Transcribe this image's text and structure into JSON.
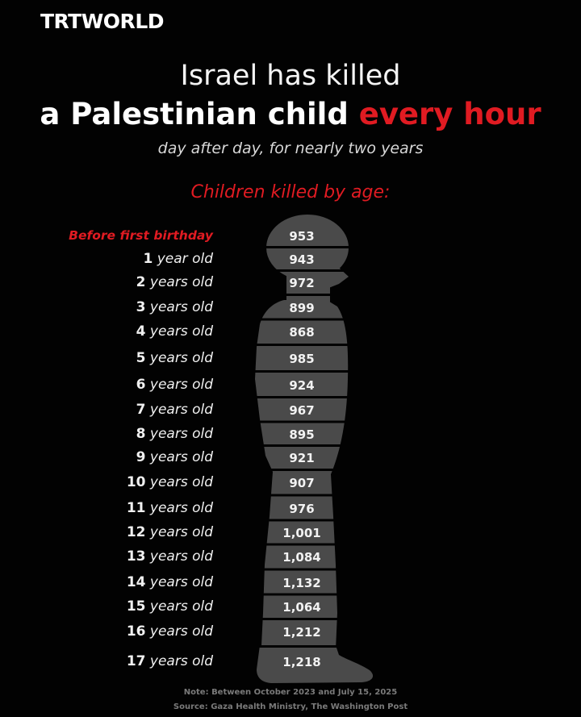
{
  "brand": "TRTWORLD",
  "title_line1": "Israel has killed",
  "title_line2_white": "a Palestinian child ",
  "title_line2_red": "every hour",
  "subtitle": "day after day, for nearly two years",
  "chart_title": "Children killed by age:",
  "note": "Note: Between October 2023 and July 15, 2025",
  "source": "Source: Gaza Health Ministry, The Washington Post",
  "colors": {
    "accent": "#e01b22",
    "silhouette": "#4a4a4a",
    "background": "#020202"
  },
  "chart_data": {
    "type": "table",
    "title": "Children killed by age:",
    "rows": [
      {
        "label": "Before first birthday",
        "value_label": "953",
        "value": 953
      },
      {
        "label_num": "1",
        "label_text": " year old",
        "value_label": "943",
        "value": 943
      },
      {
        "label_num": "2",
        "label_text": " years old",
        "value_label": "972",
        "value": 972
      },
      {
        "label_num": "3",
        "label_text": " years old",
        "value_label": "899",
        "value": 899
      },
      {
        "label_num": "4",
        "label_text": " years old",
        "value_label": "868",
        "value": 868
      },
      {
        "label_num": "5",
        "label_text": " years old",
        "value_label": "985",
        "value": 985
      },
      {
        "label_num": "6",
        "label_text": " years old",
        "value_label": "924",
        "value": 924
      },
      {
        "label_num": "7",
        "label_text": " years old",
        "value_label": "967",
        "value": 967
      },
      {
        "label_num": "8",
        "label_text": " years old",
        "value_label": "895",
        "value": 895
      },
      {
        "label_num": "9",
        "label_text": " years old",
        "value_label": "921",
        "value": 921
      },
      {
        "label_num": "10",
        "label_text": " years old",
        "value_label": "907",
        "value": 907
      },
      {
        "label_num": "11",
        "label_text": " years old",
        "value_label": "976",
        "value": 976
      },
      {
        "label_num": "12",
        "label_text": " years old",
        "value_label": "1,001",
        "value": 1001
      },
      {
        "label_num": "13",
        "label_text": " years old",
        "value_label": "1,084",
        "value": 1084
      },
      {
        "label_num": "14",
        "label_text": " years old",
        "value_label": "1,132",
        "value": 1132
      },
      {
        "label_num": "15",
        "label_text": " years old",
        "value_label": "1,064",
        "value": 1064
      },
      {
        "label_num": "16",
        "label_text": " years old",
        "value_label": "1,212",
        "value": 1212
      },
      {
        "label_num": "17",
        "label_text": " years old",
        "value_label": "1,218",
        "value": 1218
      }
    ]
  }
}
